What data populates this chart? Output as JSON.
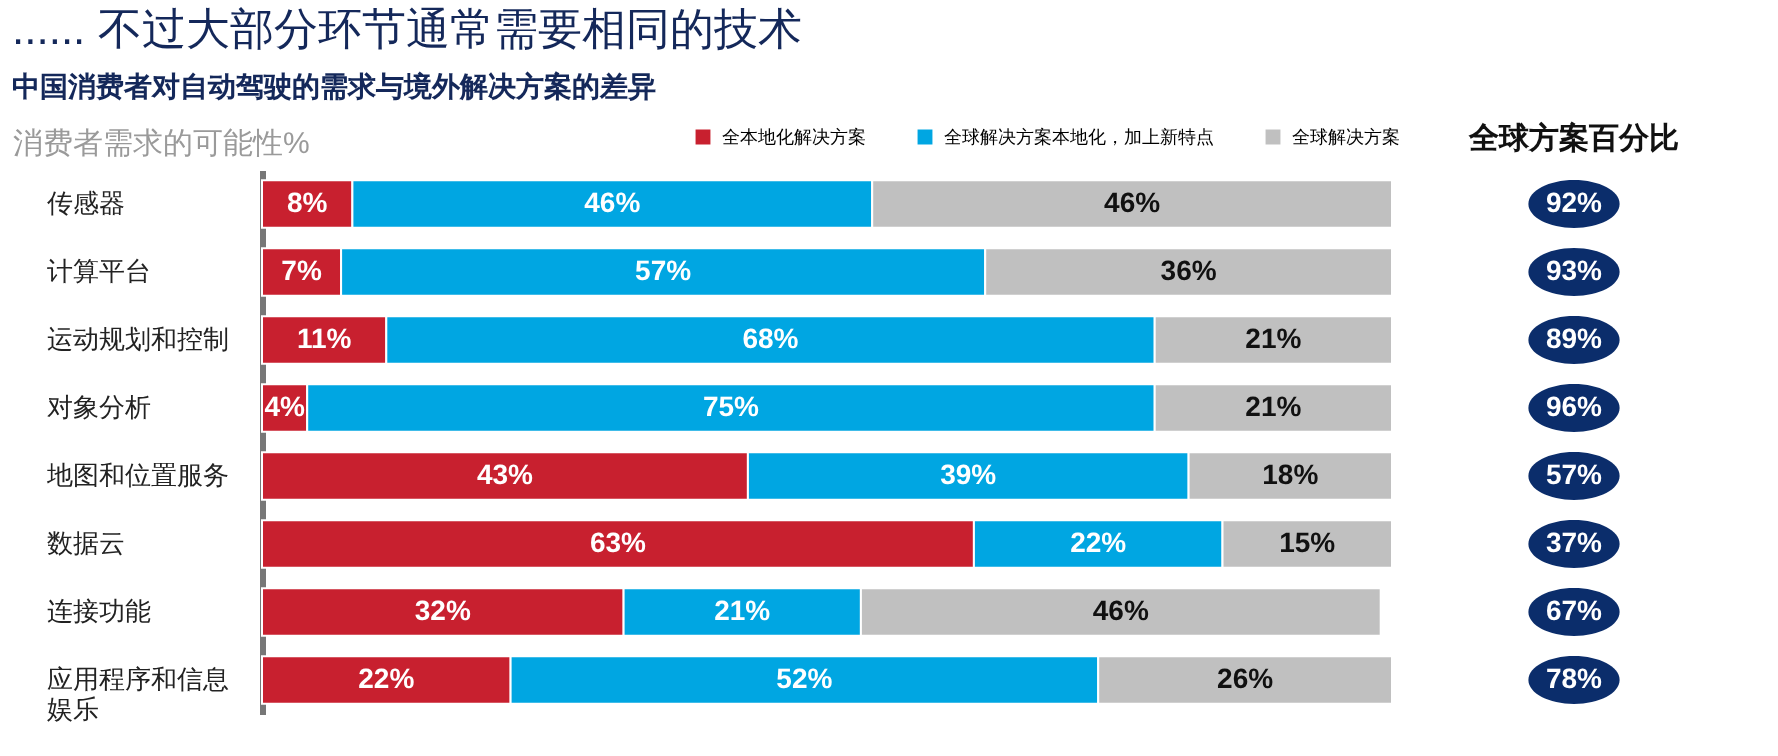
{
  "chart_data": [
    {
      "type": "bar",
      "orientation": "horizontal",
      "stacked": true,
      "title": "...... 不过大部分环节通常需要相同的技术",
      "subtitle": "中国消费者对自动驾驶的需求与境外解决方案的差异",
      "xlabel": "消费者需求的可能性%",
      "categories": [
        "传感器",
        "计算平台",
        "运动规划和控制",
        "对象分析",
        "地图和位置服务",
        "数据云",
        "连接功能",
        "应用程序和信息娱乐"
      ],
      "series": [
        {
          "name": "全本地化解决方案",
          "color": "#c8202f",
          "values": [
            8,
            7,
            11,
            4,
            43,
            63,
            32,
            22
          ],
          "value_labels": [
            "8%",
            "7%",
            "11%",
            "4%",
            "43%",
            "63%",
            "32%",
            "22%"
          ]
        },
        {
          "name": "全球解决方案本地化，加上新特点",
          "color": "#00a6e2",
          "values": [
            46,
            57,
            68,
            75,
            39,
            22,
            21,
            52
          ],
          "value_labels": [
            "46%",
            "57%",
            "68%",
            "75%",
            "39%",
            "22%",
            "21%",
            "52%"
          ]
        },
        {
          "name": "全球解决方案",
          "color": "#c0c0c0",
          "values": [
            46,
            36,
            21,
            21,
            18,
            15,
            46,
            26
          ],
          "value_labels": [
            "46%",
            "36%",
            "21%",
            "21%",
            "18%",
            "15%",
            "46%",
            "26%"
          ]
        }
      ],
      "tick_labels": "y",
      "legend": "top right"
    },
    {
      "type": "other",
      "title": "全球方案百分比",
      "categories": [
        null,
        null,
        null,
        null,
        null,
        null,
        null,
        null
      ],
      "value_labels": [
        "92%",
        "93%",
        "89%",
        "96%",
        "57%",
        "37%",
        "67%",
        "78%"
      ],
      "color": "#0b2d6b"
    }
  ]
}
